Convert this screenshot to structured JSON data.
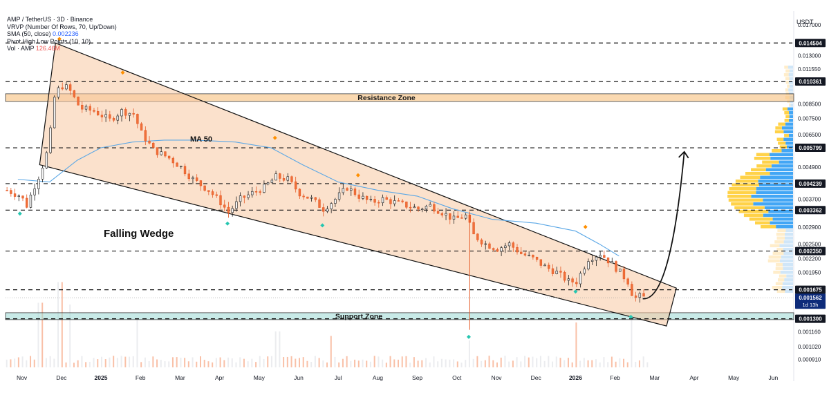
{
  "chart_data": {
    "type": "candlestick",
    "pair": "AMP / TetherUS · 3D · Binance",
    "indicators": [
      {
        "name": "VRVP (Number Of Rows, 70, Up/Down)",
        "value": ""
      },
      {
        "name": "SMA (50, close)",
        "value": "0.002236"
      },
      {
        "name": "Pivot High Low Points (10, 10)",
        "value": ""
      },
      {
        "name": "Vol · AMP",
        "value": "126.46M"
      }
    ],
    "currency": "USDT",
    "y_scale": "log",
    "ylim": [
      0.00086,
      0.0185
    ],
    "x_ticks": [
      {
        "label": "Nov",
        "month": -2
      },
      {
        "label": "Dec",
        "month": -1
      },
      {
        "label": "2025",
        "month": 0,
        "bold": true
      },
      {
        "label": "Feb",
        "month": 1
      },
      {
        "label": "Mar",
        "month": 2
      },
      {
        "label": "Apr",
        "month": 3
      },
      {
        "label": "May",
        "month": 4
      },
      {
        "label": "Jun",
        "month": 5
      },
      {
        "label": "Jul",
        "month": 6
      },
      {
        "label": "Aug",
        "month": 7
      },
      {
        "label": "Sep",
        "month": 8
      },
      {
        "label": "Oct",
        "month": 9
      },
      {
        "label": "Nov",
        "month": 10
      },
      {
        "label": "Dec",
        "month": 11
      },
      {
        "label": "2026",
        "month": 12,
        "bold": true
      },
      {
        "label": "Feb",
        "month": 13
      },
      {
        "label": "Mar",
        "month": 14
      },
      {
        "label": "Apr",
        "month": 15
      },
      {
        "label": "May",
        "month": 16
      },
      {
        "label": "Jun",
        "month": 17
      }
    ],
    "y_ticks": [
      "0.017000",
      "0.013000",
      "0.011550",
      "0.008500",
      "0.007500",
      "0.006500",
      "0.004900",
      "0.003700",
      "0.002900",
      "0.002500",
      "0.002200",
      "0.001950",
      "0.001160",
      "0.001020",
      "0.000910"
    ],
    "price_levels": [
      {
        "value": 0.014504,
        "label": "0.014504"
      },
      {
        "value": 0.010361,
        "label": "0.010361"
      },
      {
        "value": 0.005799,
        "label": "0.005799"
      },
      {
        "value": 0.004239,
        "label": "0.004239"
      },
      {
        "value": 0.003362,
        "label": "0.003362"
      },
      {
        "value": 0.00235,
        "label": "0.002350"
      },
      {
        "value": 0.001675,
        "label": "0.001675"
      },
      {
        "value": 0.0013,
        "label": "0.001300"
      }
    ],
    "current_price": {
      "value": 0.001562,
      "label": "0.001562",
      "countdown": "1d 13h"
    },
    "zones": [
      {
        "name": "Resistance Zone",
        "low": 0.0087,
        "high": 0.0093,
        "color": "#f5b971"
      },
      {
        "name": "Support Zone",
        "low": 0.00129,
        "high": 0.00137,
        "color": "#9ad8d3"
      }
    ],
    "annotations": {
      "pattern": "Falling Wedge",
      "ma": "MA 50"
    },
    "wedge": {
      "upper": [
        {
          "month": -1.15,
          "price": 0.0145
        },
        {
          "month": 14.55,
          "price": 0.0017
        }
      ],
      "lower": [
        {
          "month": -1.55,
          "price": 0.005
        },
        {
          "month": 14.3,
          "price": 0.00122
        }
      ]
    },
    "projection": [
      {
        "month": 13.7,
        "price": 0.00155
      },
      {
        "month": 14.75,
        "price": 0.0056
      }
    ],
    "sma50": [
      {
        "month": -2.1,
        "price": 0.0044
      },
      {
        "month": -1.3,
        "price": 0.0043
      },
      {
        "month": -0.6,
        "price": 0.0052
      },
      {
        "month": 0.0,
        "price": 0.0058
      },
      {
        "month": 0.8,
        "price": 0.0061
      },
      {
        "month": 1.6,
        "price": 0.0062
      },
      {
        "month": 2.4,
        "price": 0.0062
      },
      {
        "month": 3.4,
        "price": 0.0061
      },
      {
        "month": 4.3,
        "price": 0.0058
      },
      {
        "month": 5.1,
        "price": 0.005
      },
      {
        "month": 6.0,
        "price": 0.0043
      },
      {
        "month": 7.0,
        "price": 0.004
      },
      {
        "month": 8.0,
        "price": 0.0038
      },
      {
        "month": 8.9,
        "price": 0.0034
      },
      {
        "month": 9.9,
        "price": 0.0031
      },
      {
        "month": 11.0,
        "price": 0.003
      },
      {
        "month": 12.0,
        "price": 0.0028
      },
      {
        "month": 12.6,
        "price": 0.0025
      },
      {
        "month": 13.1,
        "price": 0.00225
      }
    ],
    "price_path": [
      {
        "month": -2.4,
        "price": 0.004
      },
      {
        "month": -2.05,
        "price": 0.0038
      },
      {
        "month": -1.9,
        "price": 0.0035
      },
      {
        "month": -1.75,
        "price": 0.004
      },
      {
        "month": -1.55,
        "price": 0.0047
      },
      {
        "month": -1.35,
        "price": 0.0058
      },
      {
        "month": -1.2,
        "price": 0.009
      },
      {
        "month": -1.05,
        "price": 0.01
      },
      {
        "month": -0.85,
        "price": 0.0098
      },
      {
        "month": -0.55,
        "price": 0.0082
      },
      {
        "month": -0.2,
        "price": 0.008
      },
      {
        "month": 0.2,
        "price": 0.0074
      },
      {
        "month": 0.5,
        "price": 0.008
      },
      {
        "month": 0.8,
        "price": 0.0078
      },
      {
        "month": 1.0,
        "price": 0.0066
      },
      {
        "month": 1.3,
        "price": 0.0057
      },
      {
        "month": 1.7,
        "price": 0.0053
      },
      {
        "month": 2.0,
        "price": 0.0049
      },
      {
        "month": 2.3,
        "price": 0.0044
      },
      {
        "month": 2.7,
        "price": 0.004
      },
      {
        "month": 3.0,
        "price": 0.0036
      },
      {
        "month": 3.2,
        "price": 0.0033
      },
      {
        "month": 3.5,
        "price": 0.0037
      },
      {
        "month": 3.8,
        "price": 0.0039
      },
      {
        "month": 4.1,
        "price": 0.0041
      },
      {
        "month": 4.4,
        "price": 0.0045
      },
      {
        "month": 4.7,
        "price": 0.0044
      },
      {
        "month": 5.0,
        "price": 0.0039
      },
      {
        "month": 5.3,
        "price": 0.0037
      },
      {
        "month": 5.6,
        "price": 0.0034
      },
      {
        "month": 5.9,
        "price": 0.0037
      },
      {
        "month": 6.2,
        "price": 0.0041
      },
      {
        "month": 6.5,
        "price": 0.0038
      },
      {
        "month": 6.8,
        "price": 0.0036
      },
      {
        "month": 7.1,
        "price": 0.0037
      },
      {
        "month": 7.4,
        "price": 0.0036
      },
      {
        "month": 7.7,
        "price": 0.0035
      },
      {
        "month": 8.0,
        "price": 0.0034
      },
      {
        "month": 8.3,
        "price": 0.0035
      },
      {
        "month": 8.6,
        "price": 0.0033
      },
      {
        "month": 8.9,
        "price": 0.0031
      },
      {
        "month": 9.2,
        "price": 0.0032
      },
      {
        "month": 9.4,
        "price": 0.0027
      },
      {
        "month": 9.7,
        "price": 0.0025
      },
      {
        "month": 10.0,
        "price": 0.0024
      },
      {
        "month": 10.3,
        "price": 0.0025
      },
      {
        "month": 10.6,
        "price": 0.0023
      },
      {
        "month": 10.9,
        "price": 0.0022
      },
      {
        "month": 11.2,
        "price": 0.00205
      },
      {
        "month": 11.5,
        "price": 0.00195
      },
      {
        "month": 11.8,
        "price": 0.0018
      },
      {
        "month": 12.0,
        "price": 0.0018
      },
      {
        "month": 12.3,
        "price": 0.0022
      },
      {
        "month": 12.6,
        "price": 0.0023
      },
      {
        "month": 12.9,
        "price": 0.0021
      },
      {
        "month": 13.1,
        "price": 0.00195
      },
      {
        "month": 13.3,
        "price": 0.0018
      },
      {
        "month": 13.45,
        "price": 0.00155
      },
      {
        "month": 13.6,
        "price": 0.00158
      },
      {
        "month": 13.75,
        "price": 0.00156
      }
    ],
    "pivot_highs": [
      {
        "month": -1.05,
        "price": 0.0145
      },
      {
        "month": 0.55,
        "price": 0.0108
      },
      {
        "month": 4.4,
        "price": 0.0061
      },
      {
        "month": 6.5,
        "price": 0.0044
      },
      {
        "month": 12.25,
        "price": 0.0028
      }
    ],
    "pivot_lows": [
      {
        "month": -2.05,
        "price": 0.00338
      },
      {
        "month": 3.2,
        "price": 0.0031
      },
      {
        "month": 5.6,
        "price": 0.00305
      },
      {
        "month": 9.3,
        "price": 0.00115
      },
      {
        "month": 12.0,
        "price": 0.00171
      },
      {
        "month": 13.4,
        "price": 0.00137
      }
    ],
    "volume_spikes": [
      {
        "month": -1.55,
        "level": 0.72
      },
      {
        "month": -1.05,
        "level": 0.95
      },
      {
        "month": -0.8,
        "level": 0.7
      },
      {
        "month": 0.9,
        "level": 0.55
      },
      {
        "month": 5.8,
        "level": 0.35
      },
      {
        "month": 4.45,
        "level": 0.4
      },
      {
        "month": 12.0,
        "level": 0.5
      },
      {
        "month": 13.4,
        "level": 0.55
      },
      {
        "month": 9.3,
        "level": 0.3
      }
    ]
  }
}
